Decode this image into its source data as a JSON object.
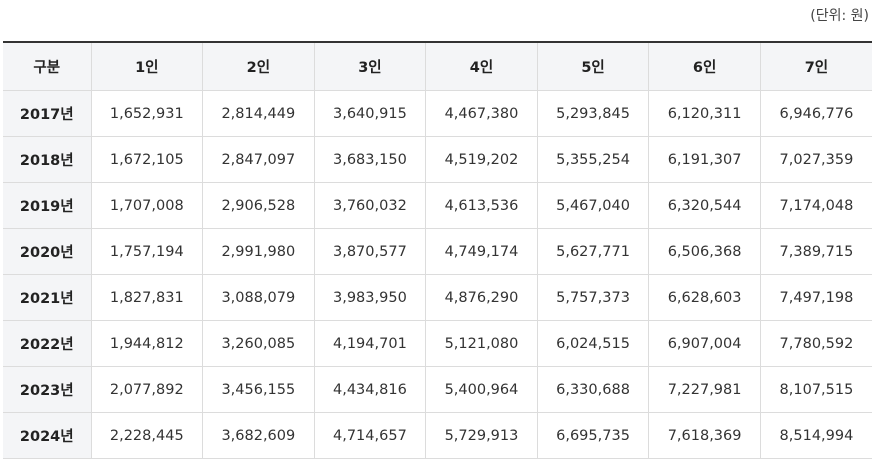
{
  "unit_note": "(단위: 원)",
  "table": {
    "headers": [
      "구분",
      "1인",
      "2인",
      "3인",
      "4인",
      "5인",
      "6인",
      "7인"
    ],
    "rows": [
      {
        "label": "2017년",
        "values": [
          "1,652,931",
          "2,814,449",
          "3,640,915",
          "4,467,380",
          "5,293,845",
          "6,120,311",
          "6,946,776"
        ]
      },
      {
        "label": "2018년",
        "values": [
          "1,672,105",
          "2,847,097",
          "3,683,150",
          "4,519,202",
          "5,355,254",
          "6,191,307",
          "7,027,359"
        ]
      },
      {
        "label": "2019년",
        "values": [
          "1,707,008",
          "2,906,528",
          "3,760,032",
          "4,613,536",
          "5,467,040",
          "6,320,544",
          "7,174,048"
        ]
      },
      {
        "label": "2020년",
        "values": [
          "1,757,194",
          "2,991,980",
          "3,870,577",
          "4,749,174",
          "5,627,771",
          "6,506,368",
          "7,389,715"
        ]
      },
      {
        "label": "2021년",
        "values": [
          "1,827,831",
          "3,088,079",
          "3,983,950",
          "4,876,290",
          "5,757,373",
          "6,628,603",
          "7,497,198"
        ]
      },
      {
        "label": "2022년",
        "values": [
          "1,944,812",
          "3,260,085",
          "4,194,701",
          "5,121,080",
          "6,024,515",
          "6,907,004",
          "7,780,592"
        ]
      },
      {
        "label": "2023년",
        "values": [
          "2,077,892",
          "3,456,155",
          "4,434,816",
          "5,400,964",
          "6,330,688",
          "7,227,981",
          "8,107,515"
        ]
      },
      {
        "label": "2024년",
        "values": [
          "2,228,445",
          "3,682,609",
          "4,714,657",
          "5,729,913",
          "6,695,735",
          "7,618,369",
          "8,514,994"
        ]
      }
    ]
  }
}
